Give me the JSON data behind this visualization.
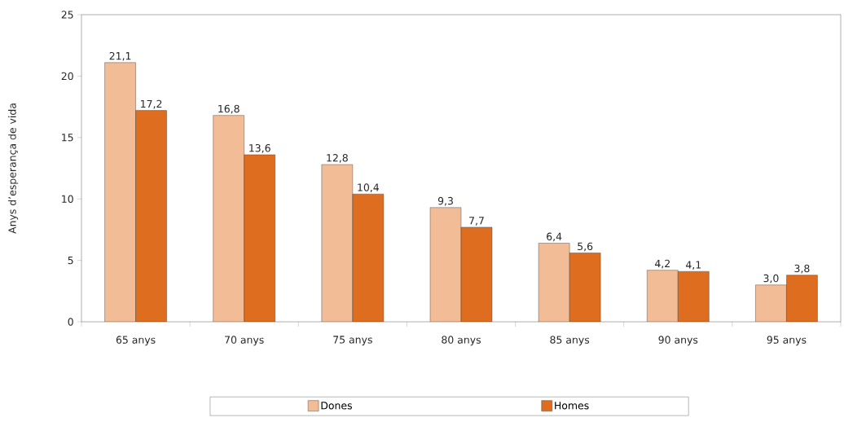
{
  "chart_data": {
    "type": "bar",
    "ylabel": "Anys d’esperança de vida",
    "categories": [
      "65 anys",
      "70 anys",
      "75 anys",
      "80 anys",
      "85 anys",
      "90 anys",
      "95 anys"
    ],
    "series": [
      {
        "name": "Dones",
        "color": "#f2bc96",
        "values": [
          21.1,
          16.8,
          12.8,
          9.3,
          6.4,
          4.2,
          3.0
        ],
        "value_labels": [
          "21,1",
          "16,8",
          "12,8",
          "9,3",
          "6,4",
          "4,2",
          "3,0"
        ]
      },
      {
        "name": "Homes",
        "color": "#df6d1f",
        "values": [
          17.2,
          13.6,
          10.4,
          7.7,
          5.6,
          4.1,
          3.8
        ],
        "value_labels": [
          "17,2",
          "13,6",
          "10,4",
          "7,7",
          "5,6",
          "4,1",
          "3,8"
        ]
      }
    ],
    "ylim": [
      0,
      25
    ],
    "yticks": [
      0,
      5,
      10,
      15,
      20,
      25
    ],
    "legend": "bottom"
  }
}
